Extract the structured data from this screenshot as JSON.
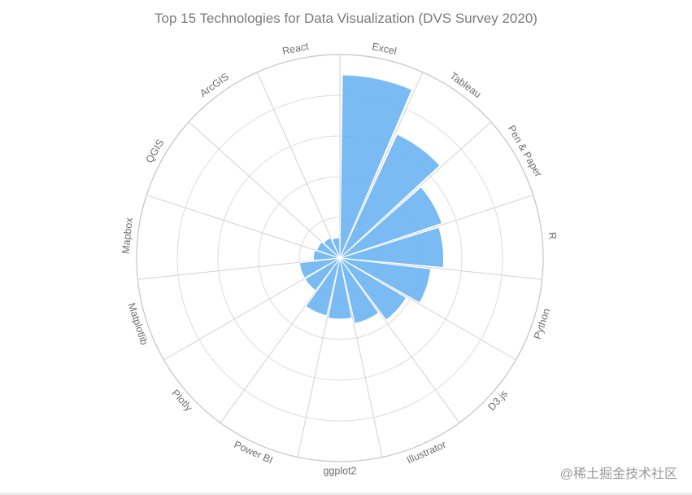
{
  "chart_data": {
    "type": "polar-column",
    "title": "Top 15 Technologies for Data Visualization (DVS Survey 2020)",
    "categories": [
      "Excel",
      "Tableau",
      "Pen & Paper",
      "R",
      "Python",
      "D3.js",
      "Illustrator",
      "ggplot2",
      "Power BI",
      "Plotly",
      "Matplotlib",
      "Mapbox",
      "QGIS",
      "ArcGIS",
      "React"
    ],
    "values": [
      90,
      67,
      53,
      51,
      45,
      38,
      33,
      30,
      29,
      20,
      20,
      13,
      12,
      11,
      10
    ],
    "rmax": 100,
    "grid": true,
    "legend": "none",
    "bar_color": "#6cb4f2"
  },
  "watermark": "@稀土掘金技术社区"
}
